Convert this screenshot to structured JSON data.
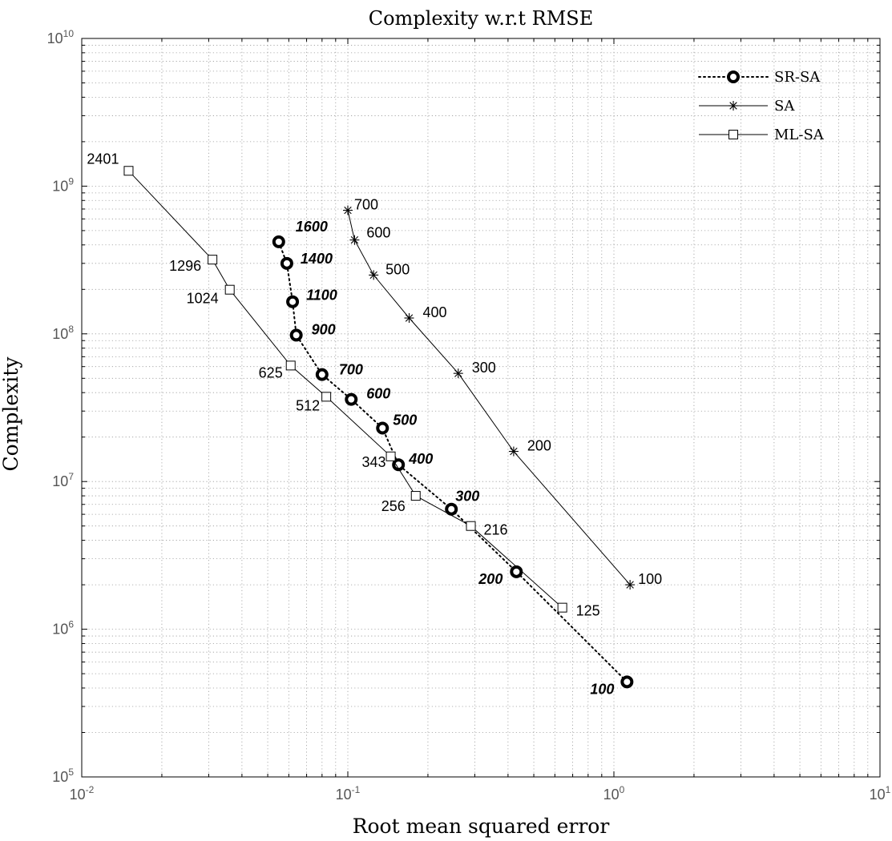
{
  "chart_data": {
    "type": "line",
    "title": "Complexity w.r.t RMSE",
    "xlabel": "Root mean squared error",
    "ylabel": "Complexity",
    "xscale": "log",
    "yscale": "log",
    "xlim": [
      0.01,
      10
    ],
    "ylim": [
      100000,
      10000000000
    ],
    "grid": true,
    "grid_minor": true,
    "legend": {
      "placement": "top-right"
    },
    "x_ticks": [
      {
        "base": "10",
        "exp": "-2"
      },
      {
        "base": "10",
        "exp": "-1"
      },
      {
        "base": "10",
        "exp": "0"
      },
      {
        "base": "10",
        "exp": "1"
      }
    ],
    "y_ticks": [
      {
        "base": "10",
        "exp": "5"
      },
      {
        "base": "10",
        "exp": "6"
      },
      {
        "base": "10",
        "exp": "7"
      },
      {
        "base": "10",
        "exp": "8"
      },
      {
        "base": "10",
        "exp": "9"
      },
      {
        "base": "10",
        "exp": "10"
      }
    ],
    "series": [
      {
        "name": "SR-SA",
        "marker": "thick-circle",
        "line": "dotted",
        "label_style": "bold-italic",
        "points": [
          {
            "x": 1.12,
            "y": 440000,
            "label": "100"
          },
          {
            "x": 0.43,
            "y": 2450000,
            "label": "200"
          },
          {
            "x": 0.245,
            "y": 6500000,
            "label": "300"
          },
          {
            "x": 0.155,
            "y": 13000000,
            "label": "400"
          },
          {
            "x": 0.135,
            "y": 23000000,
            "label": "500"
          },
          {
            "x": 0.103,
            "y": 36000000,
            "label": "600"
          },
          {
            "x": 0.08,
            "y": 53000000,
            "label": "700"
          },
          {
            "x": 0.064,
            "y": 98000000,
            "label": "900"
          },
          {
            "x": 0.062,
            "y": 165000000,
            "label": "1100"
          },
          {
            "x": 0.059,
            "y": 300000000,
            "label": "1400"
          },
          {
            "x": 0.055,
            "y": 420000000,
            "label": "1600"
          }
        ]
      },
      {
        "name": "SA",
        "marker": "star",
        "line": "solid",
        "label_style": "normal",
        "points": [
          {
            "x": 1.15,
            "y": 2000000,
            "label": "100"
          },
          {
            "x": 0.42,
            "y": 16000000,
            "label": "200"
          },
          {
            "x": 0.26,
            "y": 54000000,
            "label": "300"
          },
          {
            "x": 0.17,
            "y": 128000000,
            "label": "400"
          },
          {
            "x": 0.125,
            "y": 250000000,
            "label": "500"
          },
          {
            "x": 0.106,
            "y": 432000000,
            "label": "600"
          },
          {
            "x": 0.1,
            "y": 686000000,
            "label": "700"
          }
        ]
      },
      {
        "name": "ML-SA",
        "marker": "square",
        "line": "solid",
        "label_style": "normal",
        "points": [
          {
            "x": 0.64,
            "y": 1400000,
            "label": "125"
          },
          {
            "x": 0.29,
            "y": 5000000,
            "label": "216"
          },
          {
            "x": 0.18,
            "y": 8000000,
            "label": "256"
          },
          {
            "x": 0.145,
            "y": 14800000,
            "label": "343"
          },
          {
            "x": 0.083,
            "y": 37500000,
            "label": "512"
          },
          {
            "x": 0.061,
            "y": 61000000,
            "label": "625"
          },
          {
            "x": 0.036,
            "y": 199000000,
            "label": "1024"
          },
          {
            "x": 0.031,
            "y": 318000000,
            "label": "1296"
          },
          {
            "x": 0.015,
            "y": 1270000000,
            "label": "2401"
          }
        ]
      }
    ]
  }
}
